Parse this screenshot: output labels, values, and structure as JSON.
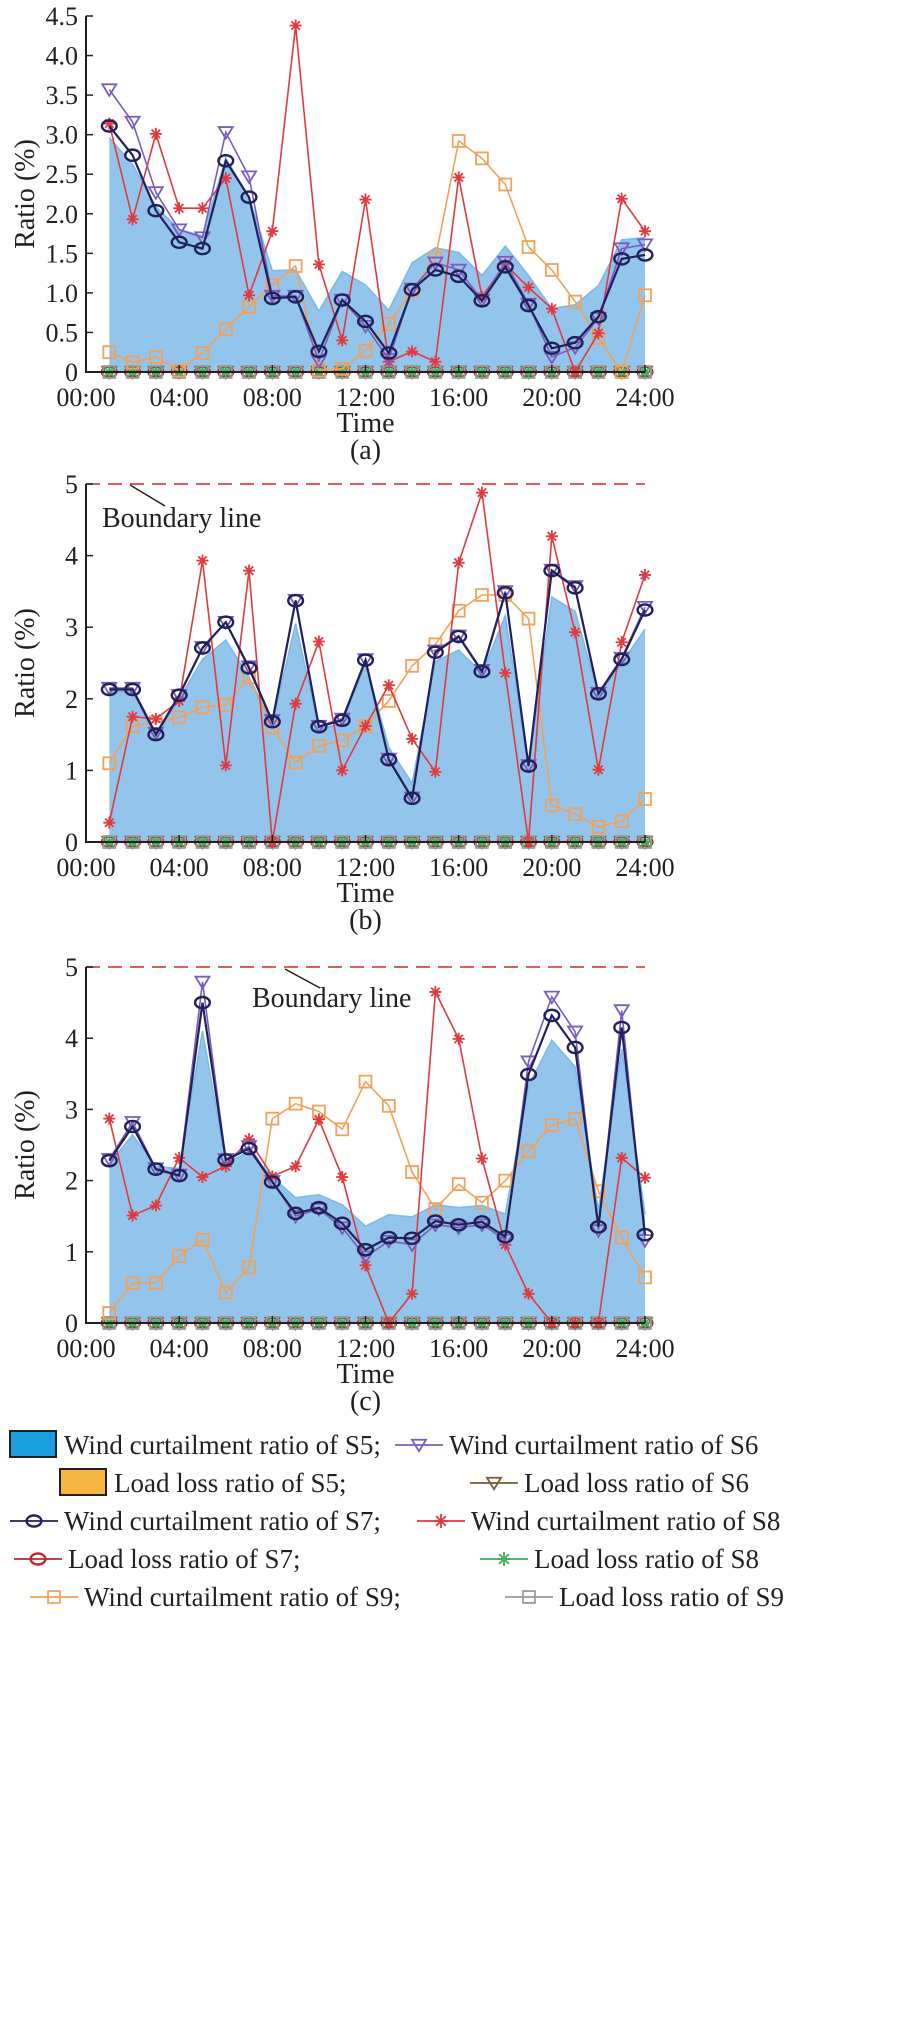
{
  "chart_data": [
    {
      "type": "line",
      "panel_label": "(a)",
      "xlabel": "Time",
      "ylabel": "Ratio (%)",
      "x_ticks": [
        "00:00",
        "04:00",
        "08:00",
        "12:00",
        "16:00",
        "20:00",
        "24:00"
      ],
      "y_ticks": [
        "0",
        "0.5",
        "1.0",
        "1.5",
        "2.0",
        "2.5",
        "3.0",
        "3.5",
        "4.0",
        "4.5"
      ],
      "ylim": [
        0,
        4.5
      ],
      "xlim": [
        0,
        24
      ],
      "x": [
        1,
        2,
        3,
        4,
        5,
        6,
        7,
        8,
        9,
        10,
        11,
        12,
        13,
        14,
        15,
        16,
        17,
        18,
        19,
        20,
        21,
        22,
        23,
        24
      ],
      "series": [
        {
          "name": "Wind curtailment ratio of S5",
          "key": "ws5",
          "values": [
            2.96,
            2.62,
            2.09,
            1.8,
            1.72,
            2.7,
            2.21,
            1.28,
            1.29,
            0.77,
            1.27,
            1.1,
            0.78,
            1.38,
            1.57,
            1.51,
            1.22,
            1.59,
            1.22,
            0.8,
            0.85,
            1.09,
            1.67,
            1.7
          ]
        },
        {
          "name": "Wind curtailment ratio of S6",
          "key": "ws6",
          "values": [
            3.57,
            3.16,
            2.27,
            1.8,
            1.7,
            3.03,
            2.47,
            0.96,
            0.96,
            0.14,
            0.91,
            0.58,
            0.16,
            1.05,
            1.38,
            1.29,
            0.91,
            1.39,
            0.86,
            0.19,
            0.31,
            0.68,
            1.56,
            1.61
          ]
        },
        {
          "name": "Wind curtailment ratio of S7",
          "key": "ws7",
          "values": [
            3.11,
            2.74,
            2.04,
            1.64,
            1.56,
            2.67,
            2.21,
            0.93,
            0.95,
            0.26,
            0.91,
            0.64,
            0.24,
            1.04,
            1.29,
            1.21,
            0.9,
            1.33,
            0.84,
            0.3,
            0.37,
            0.7,
            1.43,
            1.48
          ]
        },
        {
          "name": "Wind curtailment ratio of S8",
          "key": "ws8",
          "values": [
            3.14,
            1.93,
            3.01,
            2.07,
            2.07,
            2.45,
            0.97,
            1.78,
            4.38,
            1.36,
            0.4,
            2.18,
            0.13,
            0.26,
            0.13,
            2.46,
            0.95,
            1.36,
            1.07,
            0.8,
            0.0,
            0.49,
            2.19,
            1.78
          ]
        },
        {
          "name": "Wind curtailment ratio of S9",
          "key": "ws9",
          "values": [
            0.25,
            0.12,
            0.19,
            0.02,
            0.24,
            0.54,
            0.82,
            1.1,
            1.34,
            0.02,
            0.04,
            0.27,
            0.61,
            1.03,
            1.44,
            2.92,
            2.7,
            2.37,
            1.58,
            1.29,
            0.89,
            0.43,
            0.0,
            0.97
          ]
        },
        {
          "name": "Load loss ratio of S5",
          "key": "ls5",
          "values": [
            0,
            0,
            0,
            0,
            0,
            0,
            0,
            0,
            0,
            0,
            0,
            0,
            0,
            0,
            0,
            0,
            0,
            0,
            0,
            0,
            0,
            0,
            0,
            0
          ]
        },
        {
          "name": "Load loss ratio of S6",
          "key": "ls6",
          "values": [
            0,
            0,
            0,
            0,
            0,
            0,
            0,
            0,
            0,
            0,
            0,
            0,
            0,
            0,
            0,
            0,
            0,
            0,
            0,
            0,
            0,
            0,
            0,
            0
          ]
        },
        {
          "name": "Load loss ratio of S7",
          "key": "ls7",
          "values": [
            0,
            0,
            0,
            0,
            0,
            0,
            0,
            0,
            0,
            0,
            0,
            0,
            0,
            0,
            0,
            0,
            0,
            0,
            0,
            0,
            0,
            0,
            0,
            0
          ]
        },
        {
          "name": "Load loss ratio of S8",
          "key": "ls8",
          "values": [
            0,
            0,
            0,
            0,
            0,
            0,
            0,
            0,
            0,
            0,
            0,
            0,
            0,
            0,
            0,
            0,
            0,
            0,
            0,
            0,
            0,
            0,
            0,
            0
          ]
        },
        {
          "name": "Load loss ratio of S9",
          "key": "ls9",
          "values": [
            0,
            0,
            0,
            0,
            0,
            0,
            0,
            0,
            0,
            0,
            0,
            0,
            0,
            0,
            0,
            0,
            0,
            0,
            0,
            0,
            0,
            0,
            0,
            0
          ]
        }
      ]
    },
    {
      "type": "line",
      "panel_label": "(b)",
      "xlabel": "Time",
      "ylabel": "Ratio (%)",
      "x_ticks": [
        "00:00",
        "04:00",
        "08:00",
        "12:00",
        "16:00",
        "20:00",
        "24:00"
      ],
      "y_ticks": [
        "0",
        "1",
        "2",
        "3",
        "4",
        "5"
      ],
      "ylim": [
        0,
        5
      ],
      "xlim": [
        0,
        24
      ],
      "boundary": {
        "value": 5,
        "label": "Boundary line"
      },
      "x": [
        1,
        2,
        3,
        4,
        5,
        6,
        7,
        8,
        9,
        10,
        11,
        12,
        13,
        14,
        15,
        16,
        17,
        18,
        19,
        20,
        21,
        22,
        23,
        24
      ],
      "series": [
        {
          "name": "Wind curtailment ratio of S5",
          "key": "ws5",
          "values": [
            2.1,
            2.1,
            1.47,
            2.0,
            2.55,
            2.82,
            2.3,
            1.65,
            3.05,
            1.58,
            1.65,
            2.5,
            1.32,
            0.82,
            2.52,
            2.68,
            2.36,
            3.16,
            1.02,
            3.42,
            3.22,
            2.05,
            2.5,
            2.97
          ]
        },
        {
          "name": "Wind curtailment ratio of S6",
          "key": "ws6",
          "values": [
            2.15,
            2.15,
            1.52,
            2.05,
            2.72,
            3.07,
            2.45,
            1.7,
            3.38,
            1.62,
            1.72,
            2.55,
            1.16,
            0.62,
            2.67,
            2.88,
            2.4,
            3.5,
            1.07,
            3.8,
            3.57,
            2.08,
            2.57,
            3.28
          ]
        },
        {
          "name": "Wind curtailment ratio of S7",
          "key": "ws7",
          "values": [
            2.13,
            2.13,
            1.5,
            2.05,
            2.71,
            3.07,
            2.43,
            1.68,
            3.37,
            1.61,
            1.7,
            2.54,
            1.15,
            0.61,
            2.65,
            2.87,
            2.38,
            3.48,
            1.06,
            3.79,
            3.55,
            2.07,
            2.55,
            3.24
          ]
        },
        {
          "name": "Wind curtailment ratio of S8",
          "key": "ws8",
          "values": [
            0.27,
            1.75,
            1.72,
            1.97,
            3.93,
            1.07,
            3.79,
            0.0,
            1.93,
            2.8,
            1.0,
            1.62,
            2.19,
            1.44,
            0.98,
            3.9,
            4.88,
            2.36,
            0.0,
            4.27,
            2.93,
            1.01,
            2.79,
            3.73
          ]
        },
        {
          "name": "Wind curtailment ratio of S9",
          "key": "ws9",
          "values": [
            1.1,
            1.62,
            1.67,
            1.74,
            1.88,
            1.91,
            2.3,
            1.6,
            1.11,
            1.34,
            1.42,
            1.62,
            1.97,
            2.46,
            2.76,
            3.23,
            3.45,
            3.45,
            3.12,
            0.51,
            0.39,
            0.21,
            0.29,
            0.6
          ]
        },
        {
          "name": "Load loss ratio of S5",
          "key": "ls5",
          "values": [
            0,
            0,
            0,
            0,
            0,
            0,
            0,
            0,
            0,
            0,
            0,
            0,
            0,
            0,
            0,
            0,
            0,
            0,
            0,
            0,
            0,
            0,
            0,
            0
          ]
        },
        {
          "name": "Load loss ratio of S6",
          "key": "ls6",
          "values": [
            0,
            0,
            0,
            0,
            0,
            0,
            0,
            0,
            0,
            0,
            0,
            0,
            0,
            0,
            0,
            0,
            0,
            0,
            0,
            0,
            0,
            0,
            0,
            0
          ]
        },
        {
          "name": "Load loss ratio of S7",
          "key": "ls7",
          "values": [
            0,
            0,
            0,
            0,
            0,
            0,
            0,
            0,
            0,
            0,
            0,
            0,
            0,
            0,
            0,
            0,
            0,
            0,
            0,
            0,
            0,
            0,
            0,
            0
          ]
        },
        {
          "name": "Load loss ratio of S8",
          "key": "ls8",
          "values": [
            0,
            0,
            0,
            0,
            0,
            0,
            0,
            0,
            0,
            0,
            0,
            0,
            0,
            0,
            0,
            0,
            0,
            0,
            0,
            0,
            0,
            0,
            0,
            0
          ]
        },
        {
          "name": "Load loss ratio of S9",
          "key": "ls9",
          "values": [
            0,
            0,
            0,
            0,
            0,
            0,
            0,
            0,
            0,
            0,
            0,
            0,
            0,
            0,
            0,
            0,
            0,
            0,
            0,
            0,
            0,
            0,
            0,
            0
          ]
        }
      ]
    },
    {
      "type": "line",
      "panel_label": "(c)",
      "xlabel": "Time",
      "ylabel": "Ratio (%)",
      "x_ticks": [
        "00:00",
        "04:00",
        "08:00",
        "12:00",
        "16:00",
        "20:00",
        "24:00"
      ],
      "y_ticks": [
        "0",
        "1",
        "2",
        "3",
        "4",
        "5"
      ],
      "ylim": [
        0,
        5
      ],
      "xlim": [
        0,
        24
      ],
      "boundary": {
        "value": 5,
        "label": "Boundary line"
      },
      "x": [
        1,
        2,
        3,
        4,
        5,
        6,
        7,
        8,
        9,
        10,
        11,
        12,
        13,
        14,
        15,
        16,
        17,
        18,
        19,
        20,
        21,
        22,
        23,
        24
      ],
      "series": [
        {
          "name": "Wind curtailment ratio of S5",
          "key": "ws5",
          "values": [
            2.24,
            2.64,
            2.2,
            2.17,
            4.1,
            2.24,
            2.41,
            2.05,
            1.76,
            1.8,
            1.66,
            1.36,
            1.52,
            1.49,
            1.66,
            1.62,
            1.65,
            1.53,
            3.33,
            3.97,
            3.6,
            1.58,
            3.85,
            1.53
          ]
        },
        {
          "name": "Wind curtailment ratio of S6",
          "key": "ws6",
          "values": [
            2.3,
            2.82,
            2.17,
            2.08,
            4.79,
            2.3,
            2.48,
            1.99,
            1.5,
            1.6,
            1.34,
            0.93,
            1.15,
            1.1,
            1.38,
            1.34,
            1.38,
            1.17,
            3.67,
            4.58,
            4.09,
            1.3,
            4.39,
            1.16
          ]
        },
        {
          "name": "Wind curtailment ratio of S7",
          "key": "ws7",
          "values": [
            2.28,
            2.76,
            2.16,
            2.07,
            4.5,
            2.29,
            2.45,
            1.98,
            1.54,
            1.62,
            1.4,
            1.03,
            1.2,
            1.19,
            1.43,
            1.38,
            1.42,
            1.21,
            3.49,
            4.32,
            3.87,
            1.35,
            4.15,
            1.24
          ]
        },
        {
          "name": "Wind curtailment ratio of S8",
          "key": "ws8",
          "values": [
            2.87,
            1.51,
            1.65,
            2.32,
            2.05,
            2.2,
            2.58,
            2.06,
            2.2,
            2.86,
            2.05,
            0.81,
            0.0,
            0.41,
            4.65,
            3.99,
            2.31,
            1.1,
            0.41,
            0.0,
            0.0,
            0.0,
            2.32,
            2.04
          ]
        },
        {
          "name": "Wind curtailment ratio of S9",
          "key": "ws9",
          "values": [
            0.14,
            0.56,
            0.56,
            0.94,
            1.17,
            0.43,
            0.78,
            2.87,
            3.08,
            2.97,
            2.72,
            3.39,
            3.05,
            2.12,
            1.6,
            1.95,
            1.69,
            2.0,
            2.41,
            2.78,
            2.87,
            1.85,
            1.2,
            0.64
          ]
        },
        {
          "name": "Load loss ratio of S5",
          "key": "ls5",
          "values": [
            0,
            0,
            0,
            0,
            0,
            0,
            0,
            0,
            0,
            0,
            0,
            0,
            0,
            0,
            0,
            0,
            0,
            0,
            0,
            0,
            0,
            0,
            0,
            0
          ]
        },
        {
          "name": "Load loss ratio of S6",
          "key": "ls6",
          "values": [
            0,
            0,
            0,
            0,
            0,
            0,
            0,
            0,
            0,
            0,
            0,
            0,
            0,
            0,
            0,
            0,
            0,
            0,
            0,
            0,
            0,
            0,
            0,
            0
          ]
        },
        {
          "name": "Load loss ratio of S7",
          "key": "ls7",
          "values": [
            0,
            0,
            0,
            0,
            0,
            0,
            0,
            0,
            0,
            0,
            0,
            0,
            0,
            0,
            0,
            0,
            0,
            0,
            0,
            0,
            0,
            0,
            0,
            0
          ]
        },
        {
          "name": "Load loss ratio of S8",
          "key": "ls8",
          "values": [
            0,
            0,
            0,
            0,
            0,
            0,
            0,
            0,
            0,
            0,
            0,
            0,
            0,
            0,
            0,
            0,
            0,
            0,
            0,
            0,
            0,
            0,
            0,
            0
          ]
        },
        {
          "name": "Load loss ratio of S9",
          "key": "ls9",
          "values": [
            0,
            0,
            0,
            0,
            0,
            0,
            0,
            0,
            0,
            0,
            0,
            0,
            0,
            0,
            0,
            0,
            0,
            0,
            0,
            0,
            0,
            0,
            0,
            0
          ]
        }
      ]
    }
  ],
  "legend": {
    "placement": "bottom",
    "entries": [
      {
        "key": "ws5",
        "label": "Wind curtailment ratio of S5;"
      },
      {
        "key": "ws6",
        "label": "Wind curtailment ratio of S6"
      },
      {
        "key": "ls5",
        "label": "Load loss ratio of S5;"
      },
      {
        "key": "ls6",
        "label": "Load loss ratio of S6"
      },
      {
        "key": "ws7",
        "label": "Wind curtailment ratio of S7;"
      },
      {
        "key": "ws8",
        "label": "Wind curtailment ratio of S8"
      },
      {
        "key": "ls7",
        "label": "Load loss ratio of S7;"
      },
      {
        "key": "ls8",
        "label": "Load loss ratio of S8"
      },
      {
        "key": "ws9",
        "label": "Wind curtailment ratio of S9;"
      },
      {
        "key": "ls9",
        "label": "Load loss ratio of S9"
      }
    ]
  },
  "styles": {
    "ws5": {
      "color": "#7db9e6",
      "fill": "#93c5ec",
      "marker": "area"
    },
    "ws6": {
      "color": "#7a5cc0",
      "marker": "triangle-down"
    },
    "ws7": {
      "color": "#22205a",
      "marker": "circle"
    },
    "ws8": {
      "color": "#e03a3e",
      "marker": "asterisk"
    },
    "ws9": {
      "color": "#f2a157",
      "marker": "square"
    },
    "ls5": {
      "color": "#f6b640",
      "marker": "box"
    },
    "ls6": {
      "color": "#7a5a32",
      "marker": "triangle-down"
    },
    "ls7": {
      "color": "#c9222a",
      "marker": "circle"
    },
    "ls8": {
      "color": "#3db05b",
      "marker": "asterisk"
    },
    "ls9": {
      "color": "#9a9a9a",
      "marker": "square"
    },
    "boundary": "#e8423e",
    "axis": "#231f20"
  }
}
